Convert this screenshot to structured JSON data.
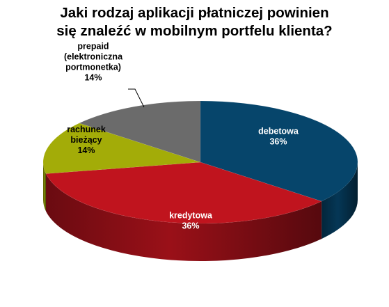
{
  "chart_data": {
    "type": "pie",
    "title_lines": [
      "Jaki rodzaj aplikacji płatniczej powinien",
      "się znaleźć w mobilnym portfelu klienta?"
    ],
    "slices": [
      {
        "label_lines": [
          "debetowa"
        ],
        "value": 36,
        "value_label": "36%",
        "color": "#06456b",
        "label_color": "#ffffff"
      },
      {
        "label_lines": [
          "kredytowa"
        ],
        "value": 36,
        "value_label": "36%",
        "color": "#c0141e",
        "label_color": "#ffffff"
      },
      {
        "label_lines": [
          "rachunek",
          "bieżący"
        ],
        "value": 14,
        "value_label": "14%",
        "color": "#a3ac08",
        "label_color": "#000000"
      },
      {
        "label_lines": [
          "prepaid",
          "(elektroniczna",
          "portmonetka)"
        ],
        "value": 14,
        "value_label": "14%",
        "color": "#6b6b6b",
        "label_color": "#000000"
      }
    ],
    "style": "3d-exploded-none",
    "legend": "none"
  }
}
